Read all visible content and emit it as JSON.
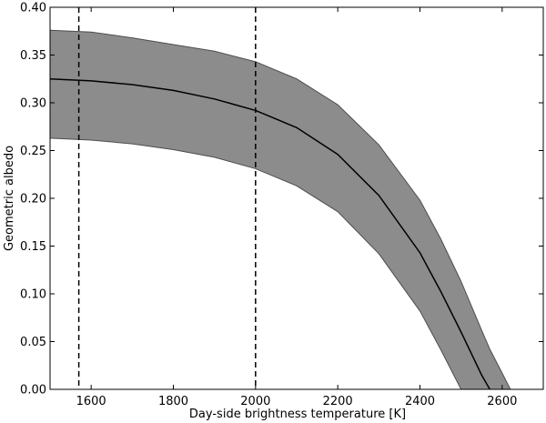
{
  "chart_data": {
    "type": "area",
    "title": "",
    "xlabel": "Day-side brightness temperature [K]",
    "ylabel": "Geometric albedo",
    "xlim": [
      1500,
      2700
    ],
    "ylim": [
      0.0,
      0.4
    ],
    "x_ticks": [
      1600,
      1800,
      2000,
      2200,
      2400,
      2600
    ],
    "x_tick_labels": [
      "1600",
      "1800",
      "2000",
      "2200",
      "2400",
      "2600"
    ],
    "y_ticks": [
      0.0,
      0.05,
      0.1,
      0.15,
      0.2,
      0.25,
      0.3,
      0.35,
      0.4
    ],
    "y_tick_labels": [
      "0.00",
      "0.05",
      "0.10",
      "0.15",
      "0.20",
      "0.25",
      "0.30",
      "0.35",
      "0.40"
    ],
    "grid": false,
    "x": [
      1500,
      1600,
      1700,
      1800,
      1900,
      2000,
      2100,
      2200,
      2300,
      2400,
      2450,
      2500,
      2550,
      2570,
      2600,
      2620
    ],
    "series": [
      {
        "role": "upper",
        "values": [
          0.376,
          0.374,
          0.368,
          0.361,
          0.354,
          0.343,
          0.325,
          0.298,
          0.256,
          0.198,
          0.158,
          0.113,
          0.062,
          0.042,
          0.017,
          0.0
        ]
      },
      {
        "role": "central",
        "values": [
          0.325,
          0.323,
          0.319,
          0.313,
          0.304,
          0.292,
          0.274,
          0.246,
          0.203,
          0.143,
          0.103,
          0.06,
          0.015,
          0.0,
          null,
          null
        ]
      },
      {
        "role": "lower",
        "values": [
          0.263,
          0.261,
          0.257,
          0.251,
          0.243,
          0.231,
          0.213,
          0.186,
          0.142,
          0.082,
          0.042,
          0.0,
          null,
          null,
          null,
          null
        ]
      }
    ],
    "vlines": [
      1570,
      2000
    ],
    "colors": {
      "band": "#8c8c8c",
      "band_edge": "#4d4d4d",
      "line": "#000000",
      "axes": "#000000"
    }
  }
}
